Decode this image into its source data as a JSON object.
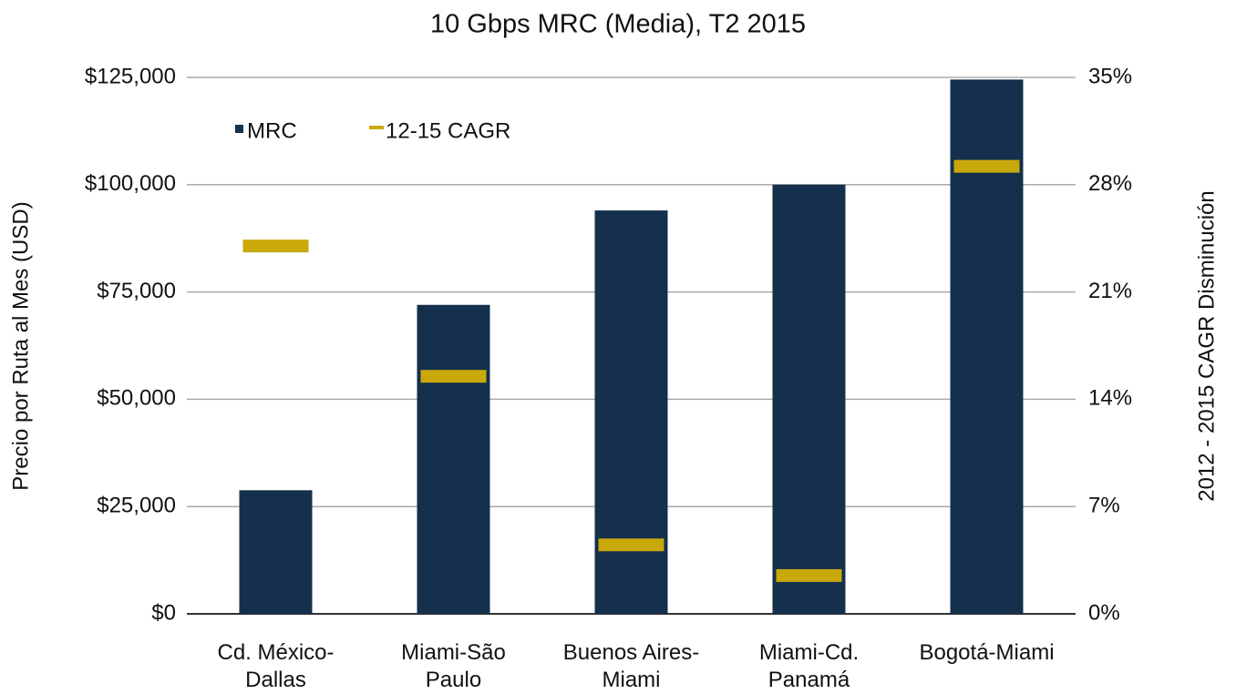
{
  "chart_data": {
    "type": "bar",
    "title": "10 Gbps MRC (Media), T2 2015",
    "y_label": "Precio por Ruta al Mes (USD)",
    "y2_label": "2012 - 2015 CAGR Disminución",
    "categories": [
      "Cd. México-\nDallas",
      "Miami-São\nPaulo",
      "Buenos Aires-\nMiami",
      "Miami-Cd.\nPanamá",
      "Bogotá-Miami"
    ],
    "series": [
      {
        "name": "MRC",
        "color": "#14304d",
        "values": [
          28800,
          72000,
          94000,
          100000,
          124500
        ]
      },
      {
        "name": "12-15 CAGR",
        "color": "#c9a90a",
        "axis": "y2",
        "values": [
          24,
          15.5,
          4.5,
          2.5,
          29.2
        ]
      }
    ],
    "ylim": [
      0,
      125000
    ],
    "yticks": [
      {
        "value": 0,
        "label": "$0"
      },
      {
        "value": 25000,
        "label": "$25,000"
      },
      {
        "value": 50000,
        "label": "$50,000"
      },
      {
        "value": 75000,
        "label": "$75,000"
      },
      {
        "value": 100000,
        "label": "$100,000"
      },
      {
        "value": 125000,
        "label": "$125,000"
      }
    ],
    "y2lim": [
      0,
      35
    ],
    "y2ticks": [
      {
        "value": 0,
        "label": "0%"
      },
      {
        "value": 7,
        "label": "7%"
      },
      {
        "value": 14,
        "label": "14%"
      },
      {
        "value": 21,
        "label": "21%"
      },
      {
        "value": 28,
        "label": "28%"
      },
      {
        "value": 35,
        "label": "35%"
      }
    ],
    "grid": true,
    "legend": "top-left"
  }
}
